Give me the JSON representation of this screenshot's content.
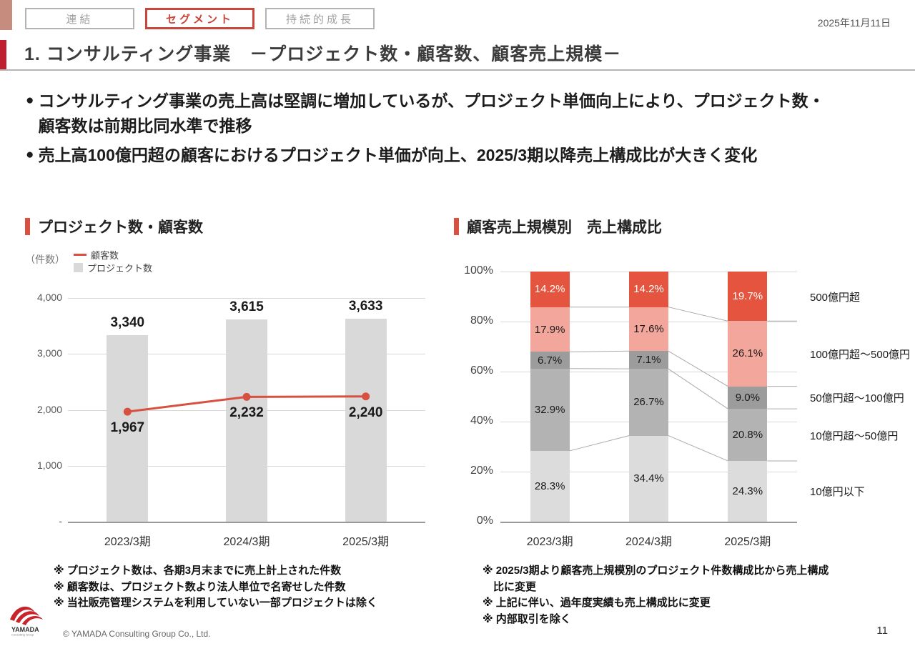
{
  "meta": {
    "date": "2025年11月11日",
    "colors": {
      "brand_red": "#bf1e2e",
      "accent_red": "#c9463a",
      "chart_red": "#e4543e",
      "chart_pink": "#f2a69c",
      "grey_dark": "#9c9c9c",
      "grey_mid": "#b3b3b3",
      "grey_light": "#d9d9d9"
    }
  },
  "tabs": [
    {
      "label": "連結",
      "active": false
    },
    {
      "label": "セグメント",
      "active": true
    },
    {
      "label": "持続的成長",
      "active": false
    }
  ],
  "header": {
    "title": "1. コンサルティング事業　－プロジェクト数・顧客数、顧客売上規模－"
  },
  "bullets": [
    {
      "lines": [
        "コンサルティング事業の売上高は堅調に増加しているが、プロジェクト単価向上により、プロジェクト数・",
        "顧客数は前期比同水準で推移"
      ]
    },
    {
      "lines": [
        "売上高100億円超の顧客におけるプロジェクト単価が向上、2025/3期以降売上構成比が大きく変化"
      ]
    }
  ],
  "chart_data": [
    {
      "type": "bar",
      "title": "プロジェクト数・顧客数",
      "unit_label": "（件数）",
      "categories": [
        "2023/3期",
        "2024/3期",
        "2025/3期"
      ],
      "series": [
        {
          "name": "プロジェクト数",
          "kind": "bar",
          "color": "#d9d9d9",
          "values": [
            3340,
            3615,
            3633
          ],
          "labels": [
            "3,340",
            "3,615",
            "3,633"
          ]
        },
        {
          "name": "顧客数",
          "kind": "line",
          "color": "#d8503f",
          "values": [
            1967,
            2232,
            2240
          ],
          "labels": [
            "1,967",
            "2,232",
            "2,240"
          ]
        }
      ],
      "ylim": [
        0,
        4000
      ],
      "yticks": [
        {
          "value": 4000,
          "label": "4,000"
        },
        {
          "value": 3000,
          "label": "3,000"
        },
        {
          "value": 2000,
          "label": "2,000"
        },
        {
          "value": 1000,
          "label": "1,000"
        },
        {
          "value": 0,
          "label": "-"
        }
      ],
      "footnote_lines": [
        "※ プロジェクト数は、各期3月末までに売上計上された件数",
        "※ 顧客数は、プロジェクト数より法人単位で名寄せした件数",
        "※ 当社販売管理システムを利用していない一部プロジェクトは除く"
      ]
    },
    {
      "type": "stacked-bar-100",
      "title": "顧客売上規模別　売上構成比",
      "categories": [
        "2023/3期",
        "2024/3期",
        "2025/3期"
      ],
      "segments": [
        {
          "name": "10億円以下",
          "color": "#dcdcdc",
          "text_light": false,
          "values": [
            28.3,
            34.4,
            24.3
          ]
        },
        {
          "name": "10億円超～50億円",
          "color": "#b3b3b3",
          "text_light": false,
          "values": [
            32.9,
            26.7,
            20.8
          ]
        },
        {
          "name": "50億円超～100億円",
          "color": "#9c9c9c",
          "text_light": false,
          "values": [
            6.7,
            7.1,
            9.0
          ]
        },
        {
          "name": "100億円超～500億円",
          "color": "#f2a69c",
          "text_light": false,
          "values": [
            17.9,
            17.6,
            26.1
          ]
        },
        {
          "name": "500億円超",
          "color": "#e4543e",
          "text_light": true,
          "values": [
            14.2,
            14.2,
            19.7
          ]
        }
      ],
      "ylim": [
        0,
        100
      ],
      "ytick_step": 20,
      "footnote_lines": [
        "※ 2025/3期より顧客売上規模別のプロジェクト件数構成比から売上構成",
        "　比に変更",
        "※ 上記に伴い、過年度実績も売上構成比に変更",
        "※ 内部取引を除く"
      ]
    }
  ],
  "footer": {
    "logo_text": "YAMADA",
    "logo_subtext": "Consulting Group",
    "copyright": "© YAMADA Consulting Group Co., Ltd.",
    "page_number": "11"
  }
}
